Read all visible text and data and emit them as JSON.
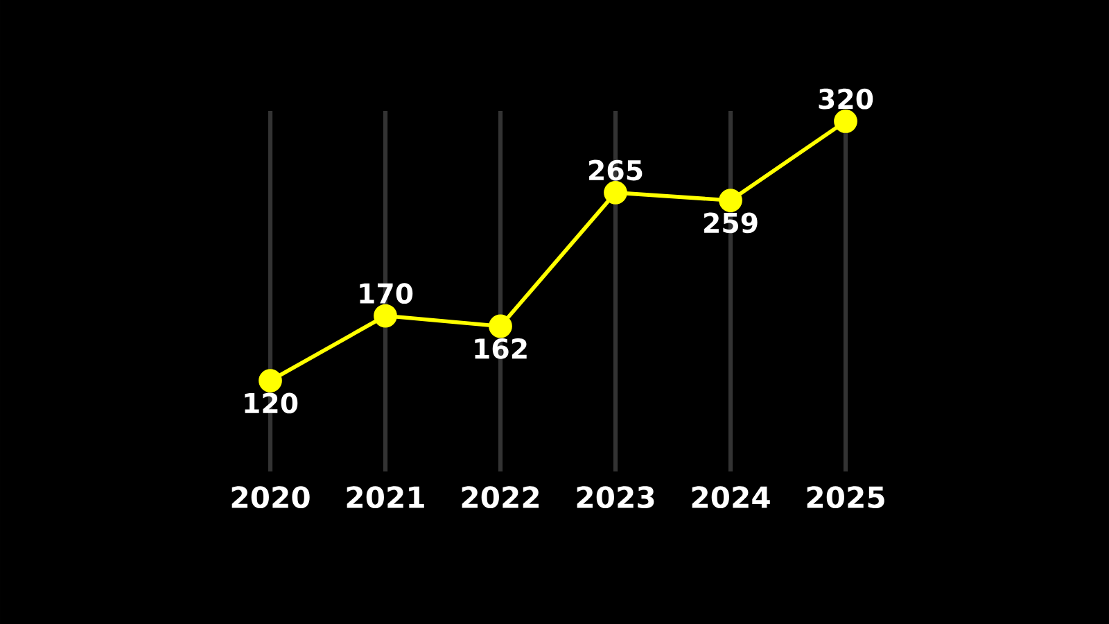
{
  "chart_data": {
    "type": "line",
    "categories": [
      "2020",
      "2021",
      "2022",
      "2023",
      "2024",
      "2025"
    ],
    "values": [
      120,
      170,
      162,
      265,
      259,
      320
    ],
    "color": "#ffff00",
    "marker": "circle",
    "line_style": "solid",
    "data_labels": true,
    "grid": "x"
  }
}
